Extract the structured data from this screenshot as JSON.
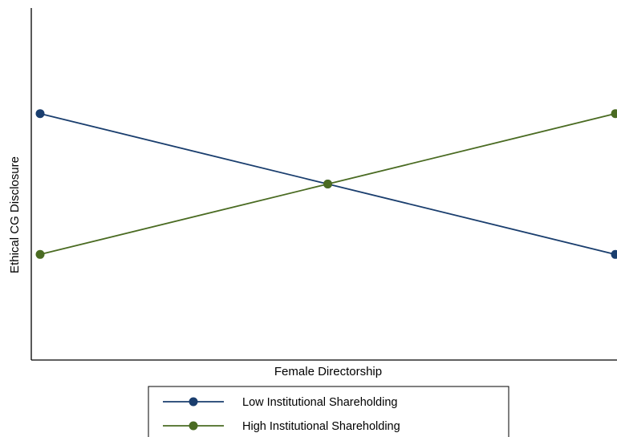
{
  "chart_data": {
    "type": "line",
    "title": "",
    "xlabel": "Female Directorship",
    "ylabel": "Ethical CG Disclosure",
    "x": [
      0,
      1,
      2
    ],
    "xlim": [
      0,
      2
    ],
    "ylim": [
      0,
      5
    ],
    "grid": false,
    "legend_position": "bottom",
    "series": [
      {
        "name": "Low Institutional Shareholding",
        "values": [
          3.5,
          2.5,
          1.5
        ],
        "color": "#1a3e6e"
      },
      {
        "name": "High Institutional Shareholding",
        "values": [
          1.5,
          2.5,
          3.5
        ],
        "color": "#4a6b22"
      }
    ]
  }
}
